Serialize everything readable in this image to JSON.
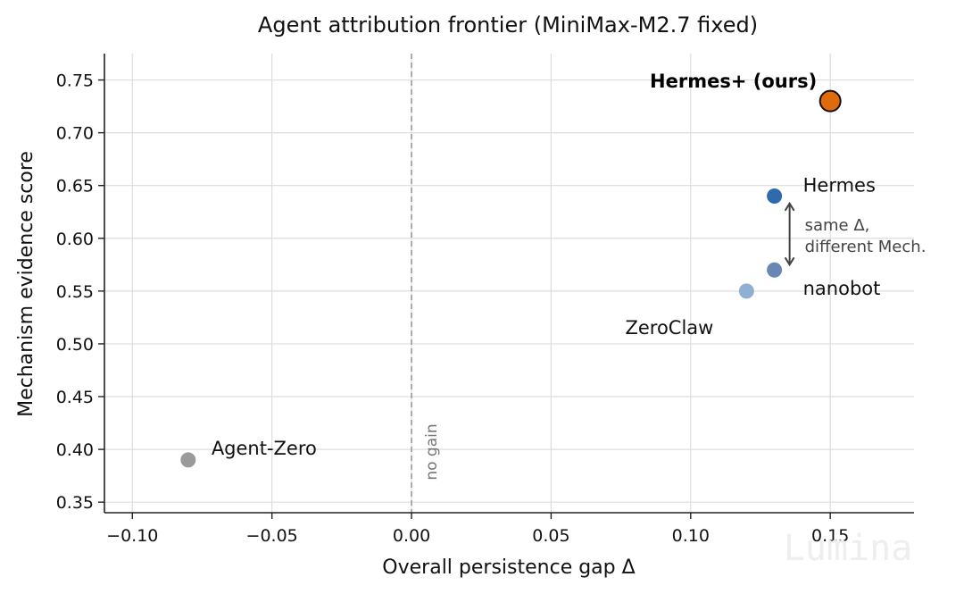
{
  "chart_data": {
    "type": "scatter",
    "title": "Agent attribution frontier (MiniMax-M2.7 fixed)",
    "xlabel": "Overall persistence gap Δ",
    "ylabel": "Mechanism evidence score",
    "xlim": [
      -0.11,
      0.18
    ],
    "ylim": [
      0.34,
      0.775
    ],
    "xticks": [
      -0.1,
      -0.05,
      0.0,
      0.05,
      0.1,
      0.15
    ],
    "xtick_labels": [
      "−0.10",
      "−0.05",
      "0.00",
      "0.05",
      "0.10",
      "0.15"
    ],
    "yticks": [
      0.35,
      0.4,
      0.45,
      0.5,
      0.55,
      0.6,
      0.65,
      0.7,
      0.75
    ],
    "ytick_labels": [
      "0.35",
      "0.40",
      "0.45",
      "0.50",
      "0.55",
      "0.60",
      "0.65",
      "0.70",
      "0.75"
    ],
    "grid": true,
    "points": [
      {
        "label": "Hermes+ (ours)",
        "x": 0.15,
        "y": 0.73,
        "color": "#e06b0c",
        "highlight": true
      },
      {
        "label": "Hermes",
        "x": 0.13,
        "y": 0.64,
        "color": "#2f6aad",
        "highlight": false
      },
      {
        "label": "nanobot",
        "x": 0.13,
        "y": 0.57,
        "color": "#6a86b3",
        "highlight": false
      },
      {
        "label": "ZeroClaw",
        "x": 0.12,
        "y": 0.55,
        "color": "#8fb0d2",
        "highlight": false
      },
      {
        "label": "Agent-Zero",
        "x": -0.08,
        "y": 0.39,
        "color": "#9a9a9a",
        "highlight": false
      }
    ],
    "reference_line": {
      "x": 0.0,
      "label": "no gain"
    },
    "annotation": {
      "lines": [
        "same Δ,",
        "different Mech."
      ],
      "x": 0.13,
      "y_from": 0.633,
      "y_to": 0.575
    }
  },
  "watermark": "Lumina"
}
